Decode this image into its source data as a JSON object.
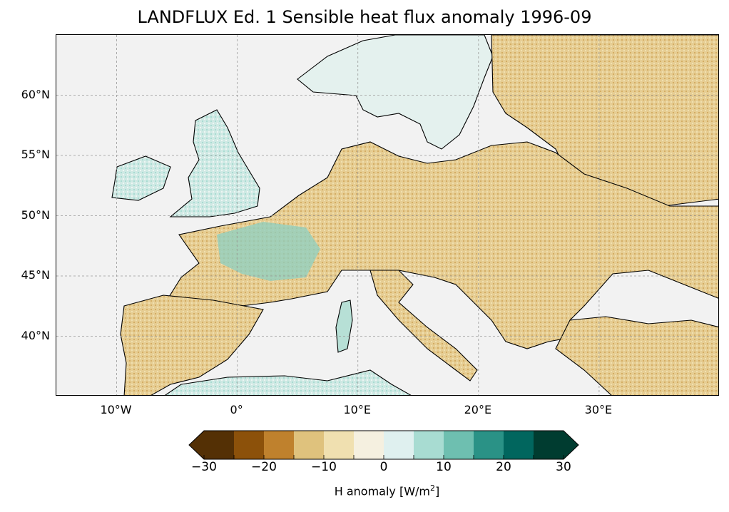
{
  "title": "LANDFLUX Ed. 1 Sensible heat flux anomaly 1996-09",
  "map": {
    "projection": "PlateCarree",
    "extent": {
      "lon_min": -15,
      "lon_max": 40,
      "lat_min": 35,
      "lat_max": 65
    },
    "lat_ticks": [
      {
        "value": 60,
        "label": "60°N"
      },
      {
        "value": 55,
        "label": "55°N"
      },
      {
        "value": 50,
        "label": "50°N"
      },
      {
        "value": 45,
        "label": "45°N"
      },
      {
        "value": 40,
        "label": "40°N"
      }
    ],
    "lon_ticks": [
      {
        "value": -10,
        "label": "10°W"
      },
      {
        "value": 0,
        "label": "0°"
      },
      {
        "value": 10,
        "label": "10°E"
      },
      {
        "value": 20,
        "label": "20°E"
      },
      {
        "value": 30,
        "label": "30°E"
      }
    ],
    "gridlines": true,
    "ocean_color": "#f2f2f2",
    "coast_color": "#000000"
  },
  "colorbar": {
    "label_prefix": "H anomaly [W/m",
    "label_sup": "2",
    "label_suffix": "]",
    "extend": "both",
    "bounds": [
      -30,
      -25,
      -20,
      -15,
      -10,
      -5,
      0,
      5,
      10,
      15,
      20,
      25,
      30
    ],
    "colors": [
      "#543005",
      "#8c510a",
      "#bf812d",
      "#dfc27d",
      "#f0e0b0",
      "#f5f0e0",
      "#dff0ef",
      "#a8dcd2",
      "#6ebfb0",
      "#2a9286",
      "#01665e",
      "#003c30"
    ],
    "ticks": [
      {
        "value": -30,
        "label": "−30"
      },
      {
        "value": -20,
        "label": "−20"
      },
      {
        "value": -10,
        "label": "−10"
      },
      {
        "value": 0,
        "label": "0"
      },
      {
        "value": 10,
        "label": "10"
      },
      {
        "value": 20,
        "label": "20"
      },
      {
        "value": 30,
        "label": "30"
      }
    ]
  }
}
